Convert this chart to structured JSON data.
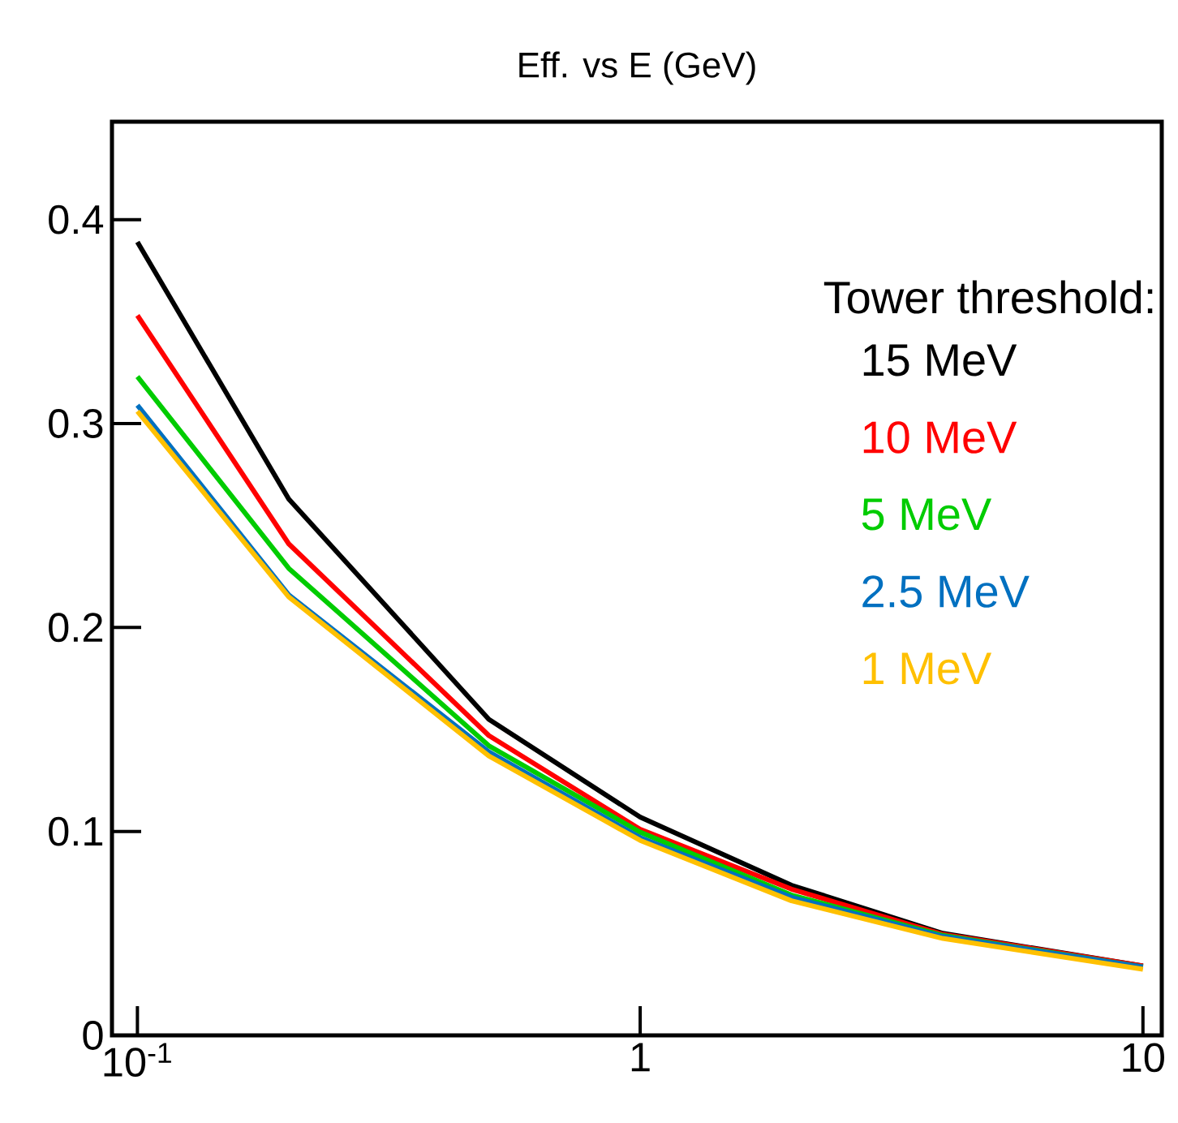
{
  "chart_data": {
    "type": "line",
    "title": "Eff. vs E (GeV)",
    "legend_title": "Tower threshold:",
    "x": [
      0.1,
      0.2,
      0.5,
      1,
      2,
      4,
      10
    ],
    "series": [
      {
        "name": "15 MeV",
        "color": "#000000",
        "values": [
          0.389,
          0.263,
          0.155,
          0.107,
          0.0736,
          0.05,
          0.034
        ]
      },
      {
        "name": "10 MeV",
        "color": "#ff0000",
        "values": [
          0.353,
          0.241,
          0.147,
          0.101,
          0.0717,
          0.0495,
          0.034
        ]
      },
      {
        "name": "5 MeV",
        "color": "#00cc00",
        "values": [
          0.323,
          0.229,
          0.142,
          0.0996,
          0.0688,
          0.049,
          0.0335
        ]
      },
      {
        "name": "2.5 MeV",
        "color": "#0070c0",
        "values": [
          0.309,
          0.216,
          0.139,
          0.097,
          0.0677,
          0.0485,
          0.0335
        ]
      },
      {
        "name": "1 MeV",
        "color": "#ffc000",
        "values": [
          0.306,
          0.215,
          0.137,
          0.0956,
          0.066,
          0.0475,
          0.0324
        ]
      }
    ],
    "log": "x",
    "xlim": [
      0.089,
      10.9
    ],
    "ylim": [
      0,
      0.448
    ],
    "xticks": [
      {
        "value": 0.1,
        "label": "10$^{-1}$"
      },
      1,
      10
    ],
    "yticks": [
      0,
      0.1,
      0.2,
      0.3,
      0.4
    ],
    "grid": false,
    "legend": "top right",
    "marker": "none",
    "line_style": "solid"
  }
}
